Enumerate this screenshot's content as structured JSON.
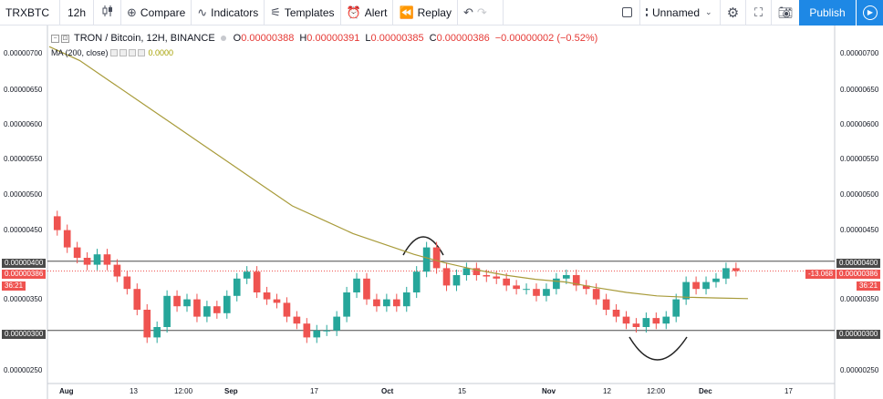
{
  "toolbar": {
    "symbol": "TRXBTC",
    "interval": "12h",
    "compare_label": "Compare",
    "indicators_label": "Indicators",
    "templates_label": "Templates",
    "alert_label": "Alert",
    "replay_label": "Replay",
    "layout_name": "Unnamed",
    "publish_label": "Publish"
  },
  "legend": {
    "title": "TRON / Bitcoin, 12H, BINANCE",
    "o_key": "O",
    "o_val": "0.00000388",
    "h_key": "H",
    "h_val": "0.00000391",
    "l_key": "L",
    "l_val": "0.00000385",
    "c_key": "C",
    "c_val": "0.00000386",
    "change": "−0.00000002 (−0.52%)",
    "ma_label": "MA (200, close)",
    "ma_value": "0.0000"
  },
  "colors": {
    "up": "#26a69a",
    "down": "#ef5350",
    "ma": "#a89b3a",
    "accent": "#1e88e5",
    "price_line": "#ef5350",
    "level_line": "#4a4a4a"
  },
  "axis": {
    "left_labels": [
      "0.00000700",
      "0.00000650",
      "0.00000600",
      "0.00000550",
      "0.00000500",
      "0.00000450",
      "0.00000400",
      "0.00000386",
      "36:21",
      "0.00000350",
      "0.00000300",
      "0.00000250"
    ],
    "right_labels": [
      "0.00000700",
      "0.00000650",
      "0.00000600",
      "0.00000550",
      "0.00000500",
      "0.00000450",
      "0.00000400",
      "0.00000386",
      "36:21",
      "0.00000350",
      "0.00000300",
      "0.00000250"
    ],
    "right_countdown": "-13.068",
    "x_labels": [
      "Aug",
      "13",
      "12:00",
      "Sep",
      "17",
      "Oct",
      "15",
      "Nov",
      "12",
      "12:00",
      "Dec",
      "17"
    ]
  },
  "chart_data": {
    "type": "candlestick",
    "ylim": [
      2.3e-06,
      7.3e-06
    ],
    "levels": [
      4e-06,
      3e-06
    ],
    "last_price": 3.86e-06,
    "closes": [
      4.45e-06,
      4.2e-06,
      4.05e-06,
      3.95e-06,
      4.1e-06,
      3.95e-06,
      3.78e-06,
      3.6e-06,
      3.3e-06,
      2.9e-06,
      3.05e-06,
      3.5e-06,
      3.35e-06,
      3.45e-06,
      3.2e-06,
      3.35e-06,
      3.25e-06,
      3.5e-06,
      3.75e-06,
      3.85e-06,
      3.55e-06,
      3.45e-06,
      3.4e-06,
      3.2e-06,
      3.1e-06,
      2.9e-06,
      3e-06,
      3e-06,
      3.2e-06,
      3.55e-06,
      3.75e-06,
      3.45e-06,
      3.35e-06,
      3.45e-06,
      3.35e-06,
      3.55e-06,
      3.85e-06,
      4.2e-06,
      3.9e-06,
      3.65e-06,
      3.8e-06,
      3.9e-06,
      3.8e-06,
      3.78e-06,
      3.75e-06,
      3.65e-06,
      3.6e-06,
      3.6e-06,
      3.5e-06,
      3.6e-06,
      3.75e-06,
      3.8e-06,
      3.65e-06,
      3.6e-06,
      3.45e-06,
      3.3e-06,
      3.2e-06,
      3.1e-06,
      3.05e-06,
      3.18e-06,
      3.1e-06,
      3.2e-06,
      3.45e-06,
      3.7e-06,
      3.6e-06,
      3.7e-06,
      3.75e-06,
      3.9e-06,
      3.86e-06
    ],
    "ma200": [
      7.1e-06,
      6.9e-06,
      6.6e-06,
      6.3e-06,
      6e-06,
      5.7e-06,
      5.4e-06,
      5.1e-06,
      4.8e-06,
      4.6e-06,
      4.4e-06,
      4.25e-06,
      4.1e-06,
      3.98e-06,
      3.88e-06,
      3.8e-06,
      3.74e-06,
      3.7e-06,
      3.62e-06,
      3.55e-06,
      3.5e-06,
      3.48e-06,
      3.47e-06,
      3.46e-06
    ]
  }
}
